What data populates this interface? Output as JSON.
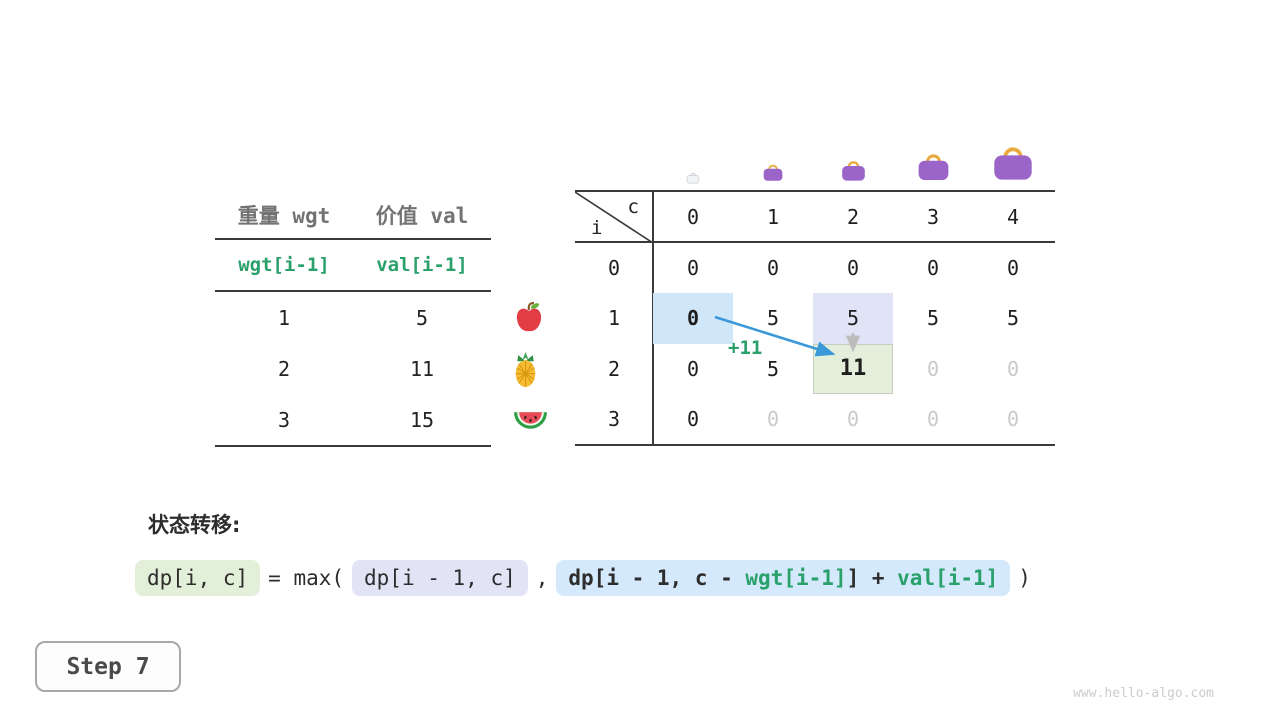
{
  "colors": {
    "teal": "#2aa06b",
    "arrow_blue": "#3b99d9",
    "cell_highlight_blue": "#cfe7f8",
    "cell_highlight_lavender": "#e1e3f6",
    "cell_highlight_green": "#e3efda",
    "dim_gray": "#c9c9c9",
    "bag_purple": "#9b64c8",
    "bag_handle": "#e9ab3f"
  },
  "items": {
    "header_wgt": "重量 wgt",
    "header_val": "价值 val",
    "var_wgt": "wgt[i-1]",
    "var_val": "val[i-1]",
    "rows": [
      {
        "wgt": "1",
        "val": "5",
        "fruit": "apple"
      },
      {
        "wgt": "2",
        "val": "11",
        "fruit": "pineapple"
      },
      {
        "wgt": "3",
        "val": "15",
        "fruit": "watermelon"
      }
    ]
  },
  "dp": {
    "corner_row": "i",
    "corner_col": "c",
    "col_headers": [
      "0",
      "1",
      "2",
      "3",
      "4"
    ],
    "rows": [
      {
        "i": "0",
        "cells": [
          {
            "v": "0"
          },
          {
            "v": "0"
          },
          {
            "v": "0"
          },
          {
            "v": "0"
          },
          {
            "v": "0"
          }
        ]
      },
      {
        "i": "1",
        "cells": [
          {
            "v": "0",
            "s": "hl-blue b"
          },
          {
            "v": "5"
          },
          {
            "v": "5",
            "s": "hl-lav"
          },
          {
            "v": "5"
          },
          {
            "v": "5"
          }
        ]
      },
      {
        "i": "2",
        "cells": [
          {
            "v": "0"
          },
          {
            "v": "5"
          },
          {
            "v": "11",
            "s": "hl-green b"
          },
          {
            "v": "0",
            "s": "dim"
          },
          {
            "v": "0",
            "s": "dim"
          }
        ]
      },
      {
        "i": "3",
        "cells": [
          {
            "v": "0"
          },
          {
            "v": "0",
            "s": "dim"
          },
          {
            "v": "0",
            "s": "dim"
          },
          {
            "v": "0",
            "s": "dim"
          },
          {
            "v": "0",
            "s": "dim"
          }
        ]
      }
    ],
    "transfer_label": "+11"
  },
  "transition": {
    "title": "状态转移:",
    "lhs": "dp[i, c]",
    "eq": "= max(",
    "opt1": "dp[i - 1, c]",
    "comma": ",",
    "opt2_p1": "dp[i - 1, c - ",
    "opt2_wgt": "wgt[i-1]",
    "opt2_p3": "] + ",
    "opt2_val": "val[i-1]",
    "close": ")"
  },
  "step": {
    "label": "Step 7"
  },
  "watermark": "www.hello-algo.com"
}
